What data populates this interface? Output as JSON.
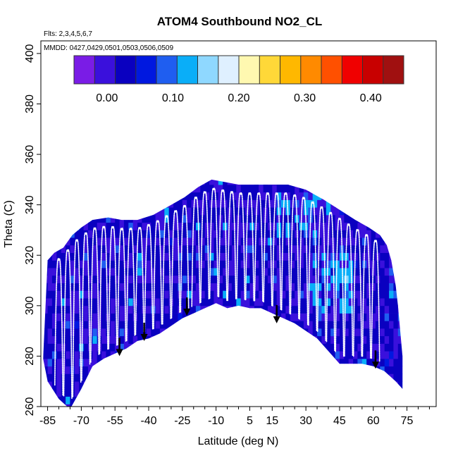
{
  "chart_data": {
    "type": "heatmap",
    "title": "ATOM4 Southbound NO2_CL",
    "flights_note": "Flts: 2,3,4,5,6,7",
    "dates_note": "MMDD: 0427,0429,0501,0503,0506,0509",
    "xlabel": "Latitude (deg N)",
    "ylabel": "Theta (C)",
    "xlim": [
      -88,
      88
    ],
    "ylim": [
      260,
      405
    ],
    "x_ticks": [
      -85,
      -70,
      -55,
      -40,
      -25,
      -10,
      5,
      15,
      30,
      45,
      60,
      75
    ],
    "x_tick_labels": [
      "-85",
      "-70",
      "-55",
      "-40",
      "-25",
      "-10",
      "5",
      "15",
      "30",
      "45",
      "60",
      "75"
    ],
    "y_ticks": [
      260,
      280,
      300,
      320,
      340,
      360,
      380,
      400
    ],
    "y_tick_labels": [
      "260",
      "280",
      "300",
      "320",
      "340",
      "360",
      "380",
      "400"
    ],
    "colorbar": {
      "range": [
        -0.05,
        0.45
      ],
      "ticks": [
        0.0,
        0.1,
        0.2,
        0.3,
        0.4
      ],
      "tick_labels": [
        "0.00",
        "0.10",
        "0.20",
        "0.30",
        "0.40"
      ],
      "colors": [
        "#7a1ce6",
        "#3a10dc",
        "#0a00c0",
        "#0018e0",
        "#1f5ef0",
        "#0aaef8",
        "#8fd8ff",
        "#dff0ff",
        "#fff8b0",
        "#ffd838",
        "#ffb800",
        "#ff8a00",
        "#ff5000",
        "#f00000",
        "#c80000",
        "#a01010"
      ]
    },
    "coverage_top": [
      [
        -87,
        279
      ],
      [
        -85,
        318
      ],
      [
        -82,
        321
      ],
      [
        -78,
        323
      ],
      [
        -74,
        328
      ],
      [
        -70,
        331
      ],
      [
        -65,
        334
      ],
      [
        -58,
        335
      ],
      [
        -52,
        334
      ],
      [
        -45,
        334
      ],
      [
        -38,
        336
      ],
      [
        -30,
        340
      ],
      [
        -24,
        343
      ],
      [
        -18,
        347
      ],
      [
        -12,
        350
      ],
      [
        -6,
        349
      ],
      [
        0,
        348
      ],
      [
        8,
        348
      ],
      [
        15,
        348
      ],
      [
        22,
        348
      ],
      [
        30,
        346
      ],
      [
        38,
        342
      ],
      [
        45,
        338
      ],
      [
        52,
        334
      ],
      [
        58,
        331
      ],
      [
        63,
        328
      ],
      [
        66,
        324
      ],
      [
        68,
        318
      ],
      [
        70,
        308
      ],
      [
        71,
        300
      ],
      [
        72,
        290
      ],
      [
        73,
        280
      ]
    ],
    "coverage_bottom": [
      [
        73,
        267
      ],
      [
        70,
        270
      ],
      [
        65,
        274
      ],
      [
        60,
        276
      ],
      [
        55,
        277
      ],
      [
        50,
        277
      ],
      [
        45,
        277
      ],
      [
        40,
        282
      ],
      [
        35,
        287
      ],
      [
        30,
        290
      ],
      [
        25,
        293
      ],
      [
        20,
        295
      ],
      [
        15,
        297
      ],
      [
        10,
        299
      ],
      [
        5,
        299
      ],
      [
        0,
        300
      ],
      [
        -5,
        299
      ],
      [
        -10,
        301
      ],
      [
        -15,
        299
      ],
      [
        -20,
        297
      ],
      [
        -25,
        295
      ],
      [
        -30,
        292
      ],
      [
        -35,
        289
      ],
      [
        -40,
        287
      ],
      [
        -45,
        286
      ],
      [
        -50,
        283
      ],
      [
        -55,
        281
      ],
      [
        -60,
        279
      ],
      [
        -65,
        276
      ],
      [
        -70,
        267
      ],
      [
        -75,
        259
      ],
      [
        -80,
        263
      ],
      [
        -85,
        270
      ],
      [
        -87,
        279
      ]
    ],
    "flight_profile_apexes": [
      -80,
      -76,
      -72,
      -68,
      -64,
      -60,
      -56,
      -52,
      -48,
      -44,
      -40,
      -36,
      -32,
      -28,
      -24,
      -19,
      -15,
      -11,
      -7,
      -3,
      1,
      5,
      9,
      13,
      17,
      21,
      25,
      29,
      33,
      37,
      41,
      45,
      49,
      53,
      57,
      61
    ],
    "descent_arrows": [
      [
        -53,
        280
      ],
      [
        -42,
        286
      ],
      [
        -23,
        296
      ],
      [
        17,
        293
      ],
      [
        61,
        275
      ]
    ]
  }
}
